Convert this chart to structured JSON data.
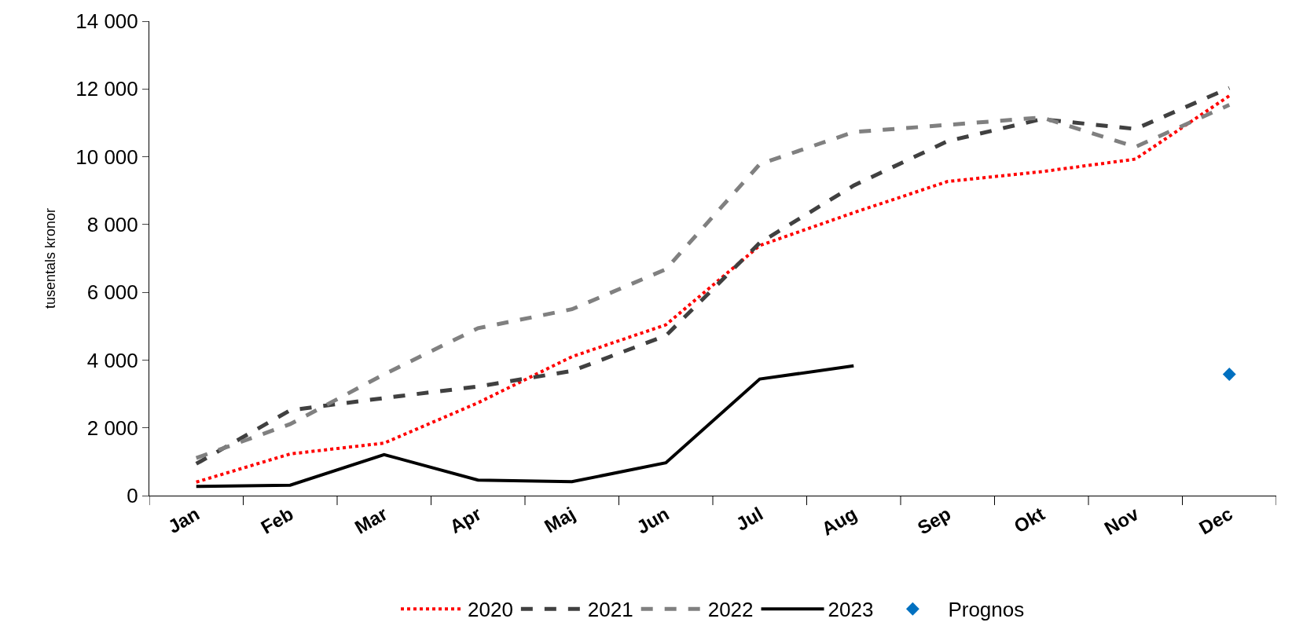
{
  "chart_data": {
    "type": "line",
    "ylabel": "tusentals kronor",
    "categories": [
      "Jan",
      "Feb",
      "Mar",
      "Apr",
      "Maj",
      "Jun",
      "Jul",
      "Aug",
      "Sep",
      "Okt",
      "Nov",
      "Dec"
    ],
    "series": [
      {
        "name": "2020",
        "color": "#ff0000",
        "line_style": "dotted",
        "values": [
          400,
          1230,
          1550,
          2740,
          4100,
          5040,
          7380,
          8350,
          9270,
          9560,
          9930,
          11800
        ]
      },
      {
        "name": "2021",
        "color": "#404040",
        "line_style": "dashed",
        "values": [
          940,
          2520,
          2880,
          3220,
          3680,
          4720,
          7460,
          9150,
          10460,
          11110,
          10820,
          12030
        ]
      },
      {
        "name": "2022",
        "color": "#808080",
        "line_style": "dashed",
        "values": [
          1110,
          2110,
          3580,
          4940,
          5500,
          6680,
          9780,
          10730,
          10940,
          11160,
          10290,
          11530
        ]
      },
      {
        "name": "2023",
        "color": "#000000",
        "line_style": "solid",
        "values": [
          270,
          310,
          1210,
          460,
          410,
          970,
          3440,
          3830,
          null,
          null,
          null,
          null
        ]
      },
      {
        "name": "Prognos",
        "color": "#0070c0",
        "type": "scatter",
        "marker": "diamond",
        "values": [
          null,
          null,
          null,
          null,
          null,
          null,
          null,
          null,
          null,
          null,
          null,
          3580
        ]
      }
    ],
    "ylim": [
      0,
      14000
    ],
    "yticks": [
      {
        "value": 0,
        "label": "0"
      },
      {
        "value": 2000,
        "label": "2 000"
      },
      {
        "value": 4000,
        "label": "4 000"
      },
      {
        "value": 6000,
        "label": "6 000"
      },
      {
        "value": 8000,
        "label": "8 000"
      },
      {
        "value": 10000,
        "label": "10 000"
      },
      {
        "value": 12000,
        "label": "12 000"
      },
      {
        "value": 14000,
        "label": "14 000"
      }
    ],
    "grid": false,
    "legend": "bottom"
  }
}
